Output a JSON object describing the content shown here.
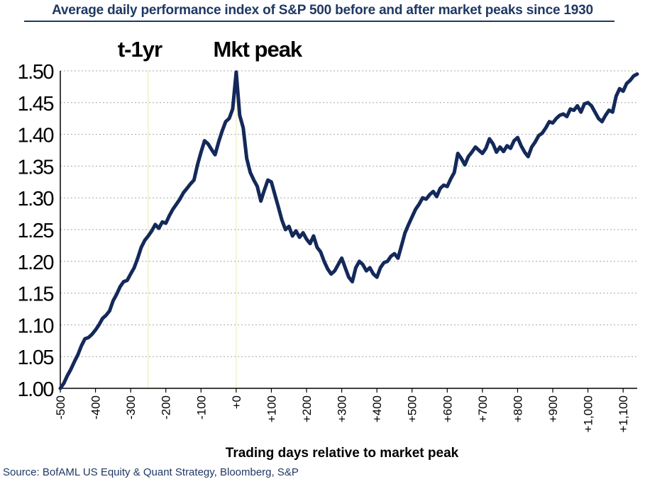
{
  "title": "Average daily performance index of S&P 500 before and after market peaks since 1930",
  "source": "Source: BofAML US Equity & Quant Strategy, Bloomberg, S&P",
  "colors": {
    "line": "#14295a",
    "title": "#1f3864",
    "grid": "#a6a6a6",
    "marker": "#f2f2c8"
  },
  "chart_data": {
    "type": "line",
    "title": "Average daily performance index of S&P 500 before and after market peaks since 1930",
    "xlabel": "Trading days relative to market peak",
    "ylabel": "",
    "xlim": [
      -500,
      1140
    ],
    "ylim": [
      1.0,
      1.5
    ],
    "grid": "horizontal dotted",
    "y_ticks": [
      "1.00",
      "1.05",
      "1.10",
      "1.15",
      "1.20",
      "1.25",
      "1.30",
      "1.35",
      "1.40",
      "1.45",
      "1.50"
    ],
    "x_ticks": [
      {
        "value": -500,
        "label": "-500"
      },
      {
        "value": -400,
        "label": "-400"
      },
      {
        "value": -300,
        "label": "-300"
      },
      {
        "value": -200,
        "label": "-200"
      },
      {
        "value": -100,
        "label": "-100"
      },
      {
        "value": 0,
        "label": "+0"
      },
      {
        "value": 100,
        "label": "+100"
      },
      {
        "value": 200,
        "label": "+200"
      },
      {
        "value": 300,
        "label": "+300"
      },
      {
        "value": 400,
        "label": "+400"
      },
      {
        "value": 500,
        "label": "+500"
      },
      {
        "value": 600,
        "label": "+600"
      },
      {
        "value": 700,
        "label": "+700"
      },
      {
        "value": 800,
        "label": "+800"
      },
      {
        "value": 900,
        "label": "+900"
      },
      {
        "value": 1000,
        "label": "+1,000"
      },
      {
        "value": 1100,
        "label": "+1,100"
      }
    ],
    "annotations": [
      {
        "x": -250,
        "label": "t-1yr"
      },
      {
        "x": 0,
        "label": "Mkt peak"
      }
    ],
    "series": [
      {
        "x": [
          -500,
          -490,
          -480,
          -470,
          -460,
          -450,
          -440,
          -430,
          -420,
          -410,
          -400,
          -390,
          -380,
          -370,
          -360,
          -350,
          -340,
          -330,
          -320,
          -310,
          -300,
          -290,
          -280,
          -270,
          -260,
          -250,
          -240,
          -230,
          -220,
          -210,
          -200,
          -190,
          -180,
          -170,
          -160,
          -150,
          -140,
          -130,
          -120,
          -110,
          -100,
          -90,
          -80,
          -70,
          -60,
          -50,
          -40,
          -30,
          -20,
          -10,
          0,
          10,
          20,
          30,
          40,
          50,
          60,
          70,
          80,
          90,
          100,
          110,
          120,
          130,
          140,
          150,
          160,
          170,
          180,
          190,
          200,
          210,
          220,
          230,
          240,
          250,
          260,
          270,
          280,
          290,
          300,
          310,
          320,
          330,
          340,
          350,
          360,
          370,
          380,
          390,
          400,
          410,
          420,
          430,
          440,
          450,
          460,
          470,
          480,
          490,
          500,
          510,
          520,
          530,
          540,
          550,
          560,
          570,
          580,
          590,
          600,
          610,
          620,
          630,
          640,
          650,
          660,
          670,
          680,
          690,
          700,
          710,
          720,
          730,
          740,
          750,
          760,
          770,
          780,
          790,
          800,
          810,
          820,
          830,
          840,
          850,
          860,
          870,
          880,
          890,
          900,
          910,
          920,
          930,
          940,
          950,
          960,
          970,
          980,
          990,
          1000,
          1010,
          1020,
          1030,
          1040,
          1050,
          1060,
          1070,
          1080,
          1090,
          1100,
          1110,
          1120,
          1130,
          1140
        ],
        "values": [
          1.0,
          1.008,
          1.02,
          1.03,
          1.042,
          1.053,
          1.067,
          1.078,
          1.08,
          1.085,
          1.092,
          1.1,
          1.11,
          1.115,
          1.122,
          1.138,
          1.148,
          1.16,
          1.168,
          1.17,
          1.18,
          1.19,
          1.205,
          1.222,
          1.233,
          1.24,
          1.248,
          1.258,
          1.252,
          1.262,
          1.26,
          1.272,
          1.282,
          1.29,
          1.298,
          1.308,
          1.315,
          1.322,
          1.328,
          1.352,
          1.372,
          1.39,
          1.385,
          1.376,
          1.368,
          1.388,
          1.405,
          1.42,
          1.425,
          1.44,
          1.498,
          1.43,
          1.41,
          1.362,
          1.34,
          1.328,
          1.318,
          1.295,
          1.312,
          1.328,
          1.325,
          1.305,
          1.285,
          1.265,
          1.25,
          1.255,
          1.24,
          1.248,
          1.238,
          1.245,
          1.235,
          1.228,
          1.24,
          1.222,
          1.215,
          1.2,
          1.188,
          1.18,
          1.185,
          1.195,
          1.205,
          1.19,
          1.175,
          1.168,
          1.19,
          1.2,
          1.195,
          1.185,
          1.19,
          1.18,
          1.175,
          1.19,
          1.198,
          1.2,
          1.208,
          1.212,
          1.205,
          1.225,
          1.245,
          1.258,
          1.27,
          1.282,
          1.29,
          1.3,
          1.298,
          1.305,
          1.31,
          1.302,
          1.315,
          1.32,
          1.318,
          1.33,
          1.34,
          1.37,
          1.362,
          1.352,
          1.365,
          1.372,
          1.38,
          1.375,
          1.37,
          1.378,
          1.393,
          1.385,
          1.372,
          1.38,
          1.373,
          1.382,
          1.378,
          1.39,
          1.395,
          1.382,
          1.372,
          1.365,
          1.38,
          1.388,
          1.398,
          1.402,
          1.41,
          1.42,
          1.418,
          1.425,
          1.43,
          1.432,
          1.428,
          1.44,
          1.438,
          1.445,
          1.435,
          1.448,
          1.45,
          1.445,
          1.435,
          1.425,
          1.42,
          1.43,
          1.438,
          1.435,
          1.46,
          1.472,
          1.468,
          1.48,
          1.485,
          1.492,
          1.495
        ]
      }
    ]
  }
}
